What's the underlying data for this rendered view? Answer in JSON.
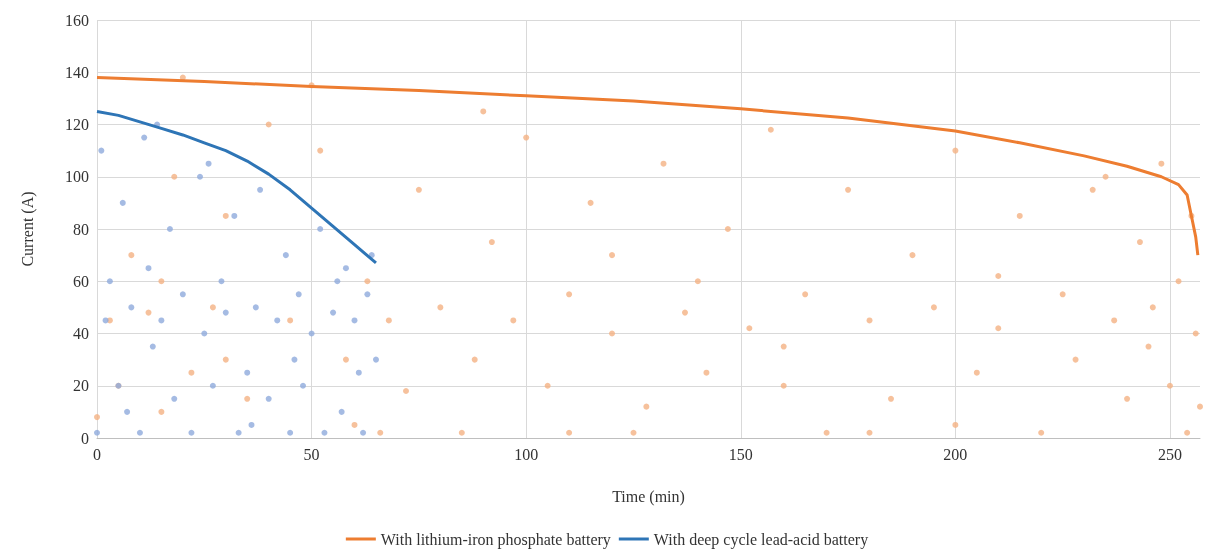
{
  "chart_data": {
    "type": "scatter",
    "xlabel": "Time (min)",
    "ylabel": "Current (A)",
    "xlim": [
      0,
      257
    ],
    "xticks": [
      0,
      50,
      100,
      150,
      200,
      250
    ],
    "ylim": [
      0,
      160
    ],
    "yticks": [
      0,
      20,
      40,
      60,
      80,
      100,
      120,
      140,
      160
    ],
    "grid": true,
    "legend": "bottom",
    "marker": "circle",
    "series": [
      {
        "color": "#f4b183",
        "x": [
          0,
          3,
          5,
          8,
          12,
          15,
          18,
          22,
          27,
          30,
          35,
          40,
          45,
          52,
          58,
          63,
          66,
          68,
          72,
          75,
          80,
          85,
          88,
          92,
          97,
          100,
          105,
          110,
          115,
          120,
          125,
          128,
          132,
          137,
          142,
          147,
          152,
          157,
          160,
          165,
          170,
          175,
          180,
          185,
          190,
          195,
          200,
          205,
          210,
          215,
          220,
          225,
          228,
          232,
          237,
          240,
          243,
          246,
          248,
          250,
          252,
          254,
          255,
          256,
          257,
          50,
          20,
          90,
          140,
          180,
          235,
          60,
          110,
          160,
          210,
          30,
          120,
          200,
          245,
          15
        ],
        "values": [
          8,
          45,
          20,
          70,
          48,
          10,
          100,
          25,
          50,
          85,
          15,
          120,
          45,
          110,
          30,
          60,
          2,
          45,
          18,
          95,
          50,
          2,
          30,
          75,
          45,
          115,
          20,
          55,
          90,
          40,
          2,
          12,
          105,
          48,
          25,
          80,
          42,
          118,
          20,
          55,
          2,
          95,
          45,
          15,
          70,
          50,
          110,
          25,
          42,
          85,
          2,
          55,
          30,
          95,
          45,
          15,
          75,
          50,
          105,
          20,
          60,
          2,
          85,
          40,
          12,
          135,
          138,
          125,
          60,
          2,
          100,
          5,
          2,
          35,
          62,
          30,
          70,
          5,
          35,
          60
        ]
      },
      {
        "color": "#8faadc",
        "x": [
          0,
          1,
          2,
          3,
          5,
          6,
          8,
          10,
          11,
          13,
          15,
          17,
          18,
          20,
          22,
          24,
          25,
          27,
          29,
          30,
          32,
          33,
          35,
          37,
          38,
          40,
          42,
          44,
          45,
          47,
          48,
          50,
          52,
          53,
          55,
          57,
          58,
          60,
          61,
          62,
          63,
          64,
          65,
          14,
          26,
          36,
          46,
          56,
          7,
          12
        ],
        "values": [
          2,
          110,
          45,
          60,
          20,
          90,
          50,
          2,
          115,
          35,
          45,
          80,
          15,
          55,
          2,
          100,
          40,
          20,
          60,
          48,
          85,
          2,
          25,
          50,
          95,
          15,
          45,
          70,
          2,
          55,
          20,
          40,
          80,
          2,
          48,
          10,
          65,
          45,
          25,
          2,
          55,
          70,
          30,
          120,
          105,
          5,
          30,
          60,
          10,
          65
        ]
      },
      {
        "type": "line",
        "name": "With lithium-iron phosphate battery",
        "color": "#ed7d31",
        "marker": "none",
        "x": [
          0,
          25,
          50,
          75,
          100,
          125,
          150,
          175,
          200,
          215,
          230,
          240,
          248,
          252,
          254,
          255,
          256,
          256.5
        ],
        "values": [
          138,
          136.5,
          134.5,
          133,
          131,
          129,
          126,
          122.5,
          117.5,
          113,
          108,
          104,
          100,
          97,
          93,
          85,
          77,
          70
        ]
      },
      {
        "type": "line",
        "name": "With deep cycle lead-acid battery",
        "color": "#2e75b6",
        "marker": "none",
        "x": [
          0,
          5,
          10,
          15,
          20,
          25,
          30,
          35,
          40,
          45,
          50,
          55,
          60,
          65
        ],
        "values": [
          125,
          123.5,
          121,
          118.5,
          116,
          113,
          110,
          106,
          101,
          95,
          88,
          81,
          74,
          67
        ]
      }
    ]
  }
}
